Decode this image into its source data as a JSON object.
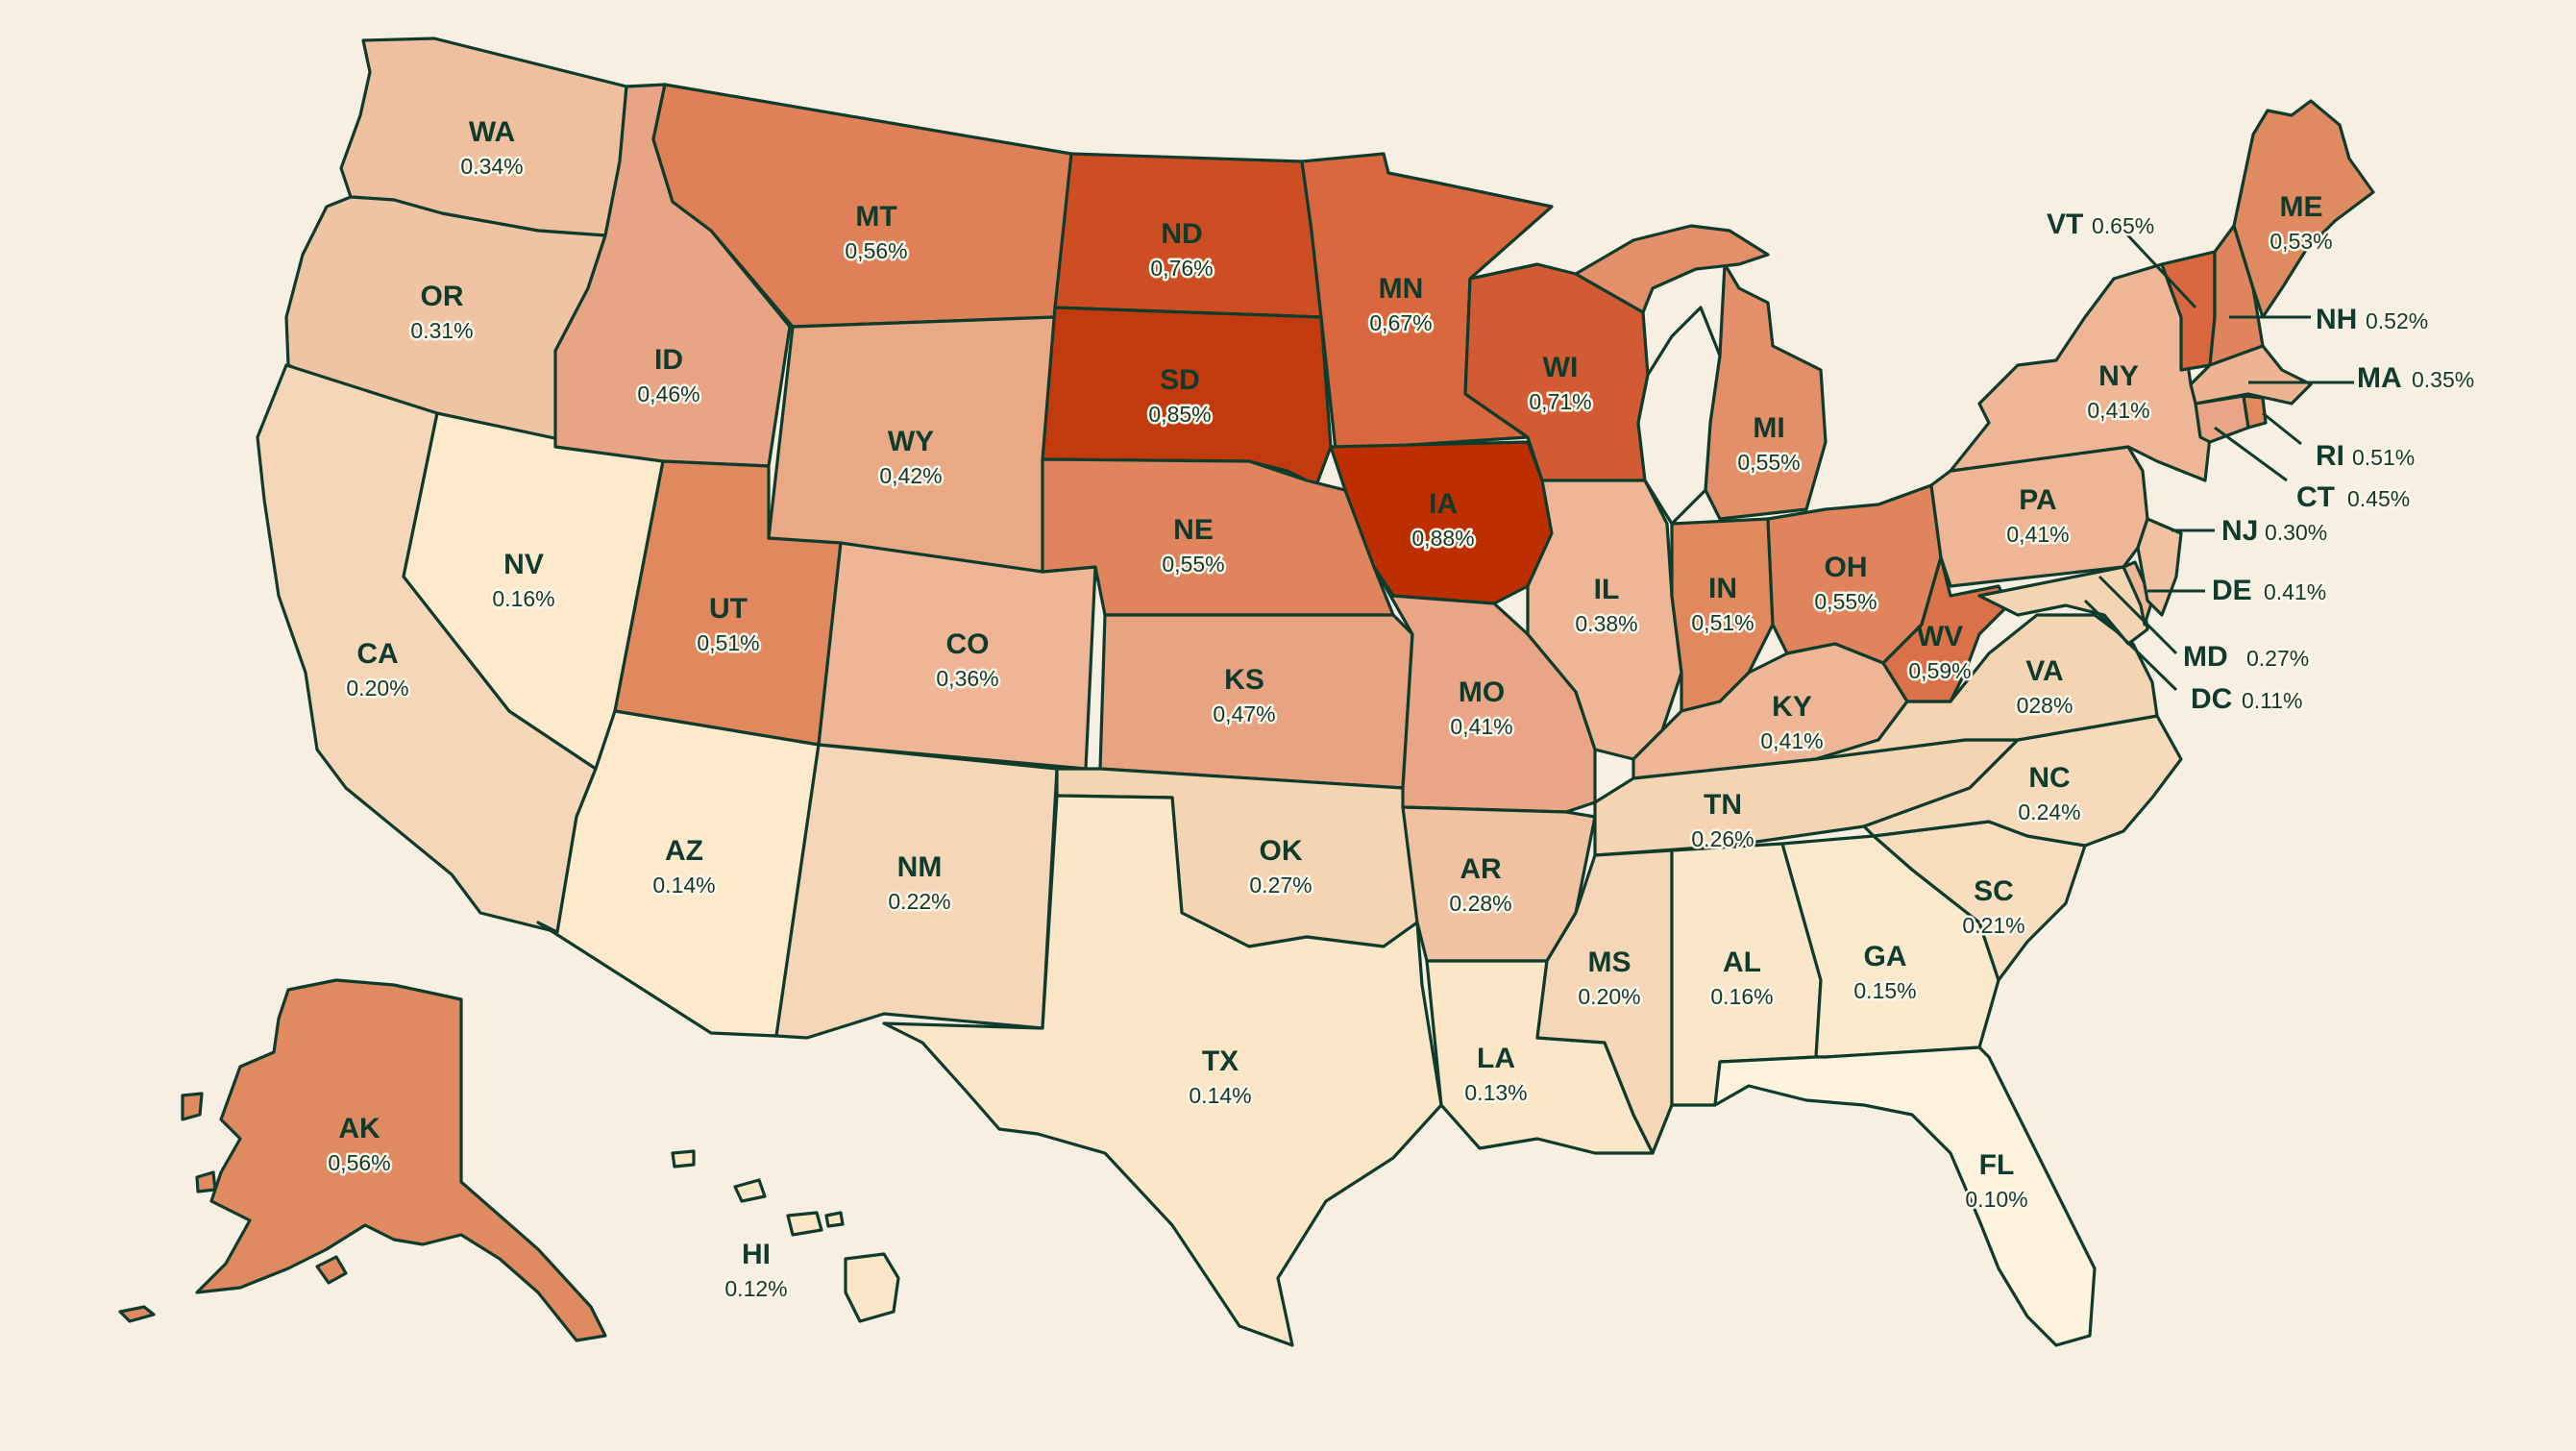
{
  "colors": {
    "background": "#f8efe3",
    "border": "#0f3b2c",
    "text": "#0f3b2c",
    "scale": [
      "#fdf3dc",
      "#fae8cc",
      "#f5d4b3",
      "#eeb896",
      "#e3987a",
      "#d67a55",
      "#cd5a34",
      "#bd2e00"
    ]
  },
  "states": {
    "WA": {
      "abbr": "WA",
      "value": "0.34%"
    },
    "OR": {
      "abbr": "OR",
      "value": "0.31%"
    },
    "CA": {
      "abbr": "CA",
      "value": "0.20%"
    },
    "NV": {
      "abbr": "NV",
      "value": "0.16%"
    },
    "ID": {
      "abbr": "ID",
      "value": "0,46%"
    },
    "MT": {
      "abbr": "MT",
      "value": "0,56%"
    },
    "WY": {
      "abbr": "WY",
      "value": "0,42%"
    },
    "UT": {
      "abbr": "UT",
      "value": "0,51%"
    },
    "AZ": {
      "abbr": "AZ",
      "value": "0.14%"
    },
    "CO": {
      "abbr": "CO",
      "value": "0,36%"
    },
    "NM": {
      "abbr": "NM",
      "value": "0.22%"
    },
    "ND": {
      "abbr": "ND",
      "value": "0,76%"
    },
    "SD": {
      "abbr": "SD",
      "value": "0,85%"
    },
    "NE": {
      "abbr": "NE",
      "value": "0,55%"
    },
    "KS": {
      "abbr": "KS",
      "value": "0,47%"
    },
    "OK": {
      "abbr": "OK",
      "value": "0.27%"
    },
    "TX": {
      "abbr": "TX",
      "value": "0.14%"
    },
    "MN": {
      "abbr": "MN",
      "value": "0,67%"
    },
    "IA": {
      "abbr": "IA",
      "value": "0,88%"
    },
    "MO": {
      "abbr": "MO",
      "value": "0,41%"
    },
    "AR": {
      "abbr": "AR",
      "value": "0.28%"
    },
    "LA": {
      "abbr": "LA",
      "value": "0.13%"
    },
    "WI": {
      "abbr": "WI",
      "value": "0,71%"
    },
    "IL": {
      "abbr": "IL",
      "value": "0.38%"
    },
    "MI": {
      "abbr": "MI",
      "value": "0,55%"
    },
    "IN": {
      "abbr": "IN",
      "value": "0,51%"
    },
    "OH": {
      "abbr": "OH",
      "value": "0,55%"
    },
    "KY": {
      "abbr": "KY",
      "value": "0,41%"
    },
    "TN": {
      "abbr": "TN",
      "value": "0.26%"
    },
    "MS": {
      "abbr": "MS",
      "value": "0.20%"
    },
    "AL": {
      "abbr": "AL",
      "value": "0.16%"
    },
    "GA": {
      "abbr": "GA",
      "value": "0.15%"
    },
    "FL": {
      "abbr": "FL",
      "value": "0.10%"
    },
    "SC": {
      "abbr": "SC",
      "value": "0.21%"
    },
    "NC": {
      "abbr": "NC",
      "value": "0.24%"
    },
    "VA": {
      "abbr": "VA",
      "value": "028%"
    },
    "WV": {
      "abbr": "WV",
      "value": "0,59%"
    },
    "PA": {
      "abbr": "PA",
      "value": "0,41%"
    },
    "NY": {
      "abbr": "NY",
      "value": "0,41%"
    },
    "ME": {
      "abbr": "ME",
      "value": "0,53%"
    },
    "AK": {
      "abbr": "AK",
      "value": "0,56%"
    },
    "HI": {
      "abbr": "HI",
      "value": "0.12%"
    },
    "VT": {
      "abbr": "VT",
      "value": "0.65%"
    },
    "NH": {
      "abbr": "NH",
      "value": "0.52%"
    },
    "MA": {
      "abbr": "MA",
      "value": "0.35%"
    },
    "RI": {
      "abbr": "RI",
      "value": "0.51%"
    },
    "CT": {
      "abbr": "CT",
      "value": "0.45%"
    },
    "NJ": {
      "abbr": "NJ",
      "value": "0.30%"
    },
    "DE": {
      "abbr": "DE",
      "value": "0.41%"
    },
    "MD": {
      "abbr": "MD",
      "value": "0.27%"
    },
    "DC": {
      "abbr": "DC",
      "value": "0.11%"
    }
  }
}
